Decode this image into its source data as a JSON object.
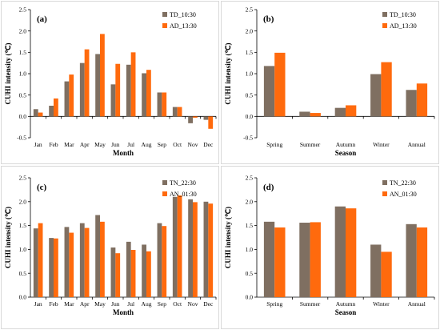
{
  "colors": {
    "series1": "#7f6f61",
    "series2": "#ff6a0d"
  },
  "chart_data": [
    {
      "id": "a",
      "tag": "(a)",
      "type": "bar",
      "categories": [
        "Jan",
        "Feb",
        "Mar",
        "Apr",
        "May",
        "Jun",
        "Jul",
        "Aug",
        "Sep",
        "Oct",
        "Nov",
        "Dec"
      ],
      "series": [
        {
          "name": "TD_10:30",
          "values": [
            0.17,
            0.25,
            0.82,
            1.25,
            1.46,
            0.75,
            1.21,
            1.01,
            0.56,
            0.22,
            -0.16,
            -0.08
          ]
        },
        {
          "name": "AD_13:30",
          "values": [
            0.09,
            0.42,
            0.98,
            1.57,
            1.93,
            1.23,
            1.5,
            1.09,
            0.56,
            0.22,
            -0.03,
            -0.29
          ]
        }
      ],
      "xlabel": "Month",
      "ylabel": "CUHI intensity (℃)",
      "ylim": [
        -0.5,
        2.5
      ],
      "yticks": [
        "-0.5",
        "0.0",
        "0.5",
        "1.0",
        "1.5",
        "2.0",
        "2.5"
      ],
      "legend": "top-right"
    },
    {
      "id": "b",
      "tag": "(b)",
      "type": "bar",
      "categories": [
        "Spring",
        "Summer",
        "Autumn",
        "Winter",
        "Annual"
      ],
      "series": [
        {
          "name": "TD_10:30",
          "values": [
            1.18,
            0.11,
            0.2,
            0.99,
            0.62
          ]
        },
        {
          "name": "AD_13:30",
          "values": [
            1.49,
            0.08,
            0.26,
            1.27,
            0.77
          ]
        }
      ],
      "xlabel": "Season",
      "ylabel": "CUHI intensity (℃)",
      "ylim": [
        -0.5,
        2.5
      ],
      "yticks": [
        "-0.5",
        "0.0",
        "0.5",
        "1.0",
        "1.5",
        "2.0",
        "2.5"
      ],
      "legend": "top-right"
    },
    {
      "id": "c",
      "tag": "(c)",
      "type": "bar",
      "categories": [
        "Jan",
        "Feb",
        "Mar",
        "Apr",
        "May",
        "Jun",
        "Jul",
        "Aug",
        "Sep",
        "Oct",
        "Nov",
        "Dec"
      ],
      "series": [
        {
          "name": "TN_22:30",
          "values": [
            1.44,
            1.24,
            1.47,
            1.55,
            1.72,
            1.04,
            1.16,
            1.1,
            1.55,
            2.1,
            2.05,
            2.0
          ]
        },
        {
          "name": "AN_01:30",
          "values": [
            1.55,
            1.23,
            1.35,
            1.45,
            1.58,
            0.92,
            0.99,
            0.96,
            1.49,
            2.13,
            1.99,
            1.96
          ]
        }
      ],
      "xlabel": "Month",
      "ylabel": "CUHI intensity (℃)",
      "ylim": [
        0.0,
        2.5
      ],
      "yticks": [
        "0.0",
        "0.5",
        "1.0",
        "1.5",
        "2.0",
        "2.5"
      ],
      "legend": "top-right"
    },
    {
      "id": "d",
      "tag": "(d)",
      "type": "bar",
      "categories": [
        "Spring",
        "Summer",
        "Autumn",
        "Winter",
        "Annual"
      ],
      "series": [
        {
          "name": "TN_22:30",
          "values": [
            1.58,
            1.56,
            1.9,
            1.1,
            1.53
          ]
        },
        {
          "name": "AN_01:30",
          "values": [
            1.46,
            1.57,
            1.86,
            0.95,
            1.46
          ]
        }
      ],
      "xlabel": "Season",
      "ylabel": "CUHI intensity (℃)",
      "ylim": [
        0.0,
        2.5
      ],
      "yticks": [
        "0.0",
        "0.5",
        "1.0",
        "1.5",
        "2.0",
        "2.5"
      ],
      "legend": "top-right"
    }
  ]
}
